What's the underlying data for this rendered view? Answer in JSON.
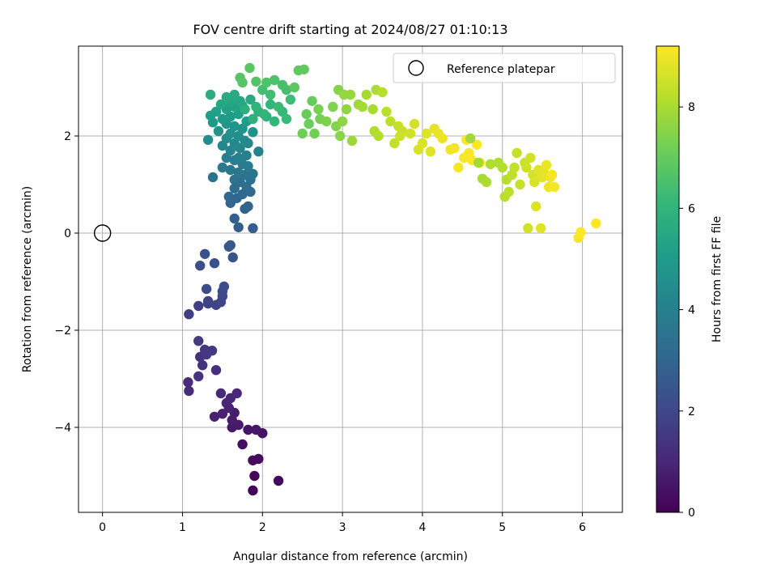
{
  "chart_data": {
    "type": "scatter",
    "title": "FOV centre drift starting at 2024/08/27 01:10:13",
    "xlabel": "Angular distance from reference (arcmin)",
    "ylabel": "Rotation from reference (arcmin)",
    "xlim": [
      -0.3,
      6.5
    ],
    "ylim": [
      -5.75,
      3.85
    ],
    "xticks": [
      0,
      1,
      2,
      3,
      4,
      5,
      6
    ],
    "yticks": [
      -4,
      -2,
      0,
      2
    ],
    "xtick_labels": [
      "0",
      "1",
      "2",
      "3",
      "4",
      "5",
      "6"
    ],
    "ytick_labels": [
      "−4",
      "−2",
      "0",
      "2"
    ],
    "grid": true,
    "legend": {
      "placement": "upper right",
      "entries": [
        "Reference platepar"
      ]
    },
    "reference_point": {
      "x": 0,
      "y": 0,
      "label": "Reference platepar"
    },
    "colorbar": {
      "label": "Hours from first FF file",
      "range": [
        0,
        9.2
      ],
      "ticks": [
        0,
        2,
        4,
        6,
        8
      ],
      "tick_labels": [
        "0",
        "2",
        "4",
        "6",
        "8"
      ],
      "colormap": "viridis"
    },
    "series": [
      {
        "colored_by": "hours",
        "points": [
          [
            1.88,
            -5.3,
            0.1
          ],
          [
            1.9,
            -5.0,
            0.15
          ],
          [
            2.2,
            -5.1,
            0.2
          ],
          [
            1.88,
            -4.68,
            0.25
          ],
          [
            1.95,
            -4.65,
            0.3
          ],
          [
            1.75,
            -4.35,
            0.4
          ],
          [
            2.0,
            -4.12,
            0.45
          ],
          [
            1.82,
            -4.05,
            0.5
          ],
          [
            1.92,
            -4.05,
            0.55
          ],
          [
            1.62,
            -4.0,
            0.6
          ],
          [
            1.7,
            -3.95,
            0.65
          ],
          [
            1.62,
            -3.85,
            0.7
          ],
          [
            1.65,
            -3.7,
            0.75
          ],
          [
            1.4,
            -3.78,
            0.8
          ],
          [
            1.5,
            -3.72,
            0.85
          ],
          [
            1.58,
            -3.6,
            0.9
          ],
          [
            1.55,
            -3.5,
            0.95
          ],
          [
            1.6,
            -3.4,
            1.0
          ],
          [
            1.68,
            -3.3,
            1.05
          ],
          [
            1.48,
            -3.3,
            1.1
          ],
          [
            1.08,
            -3.25,
            1.15
          ],
          [
            1.07,
            -3.07,
            1.2
          ],
          [
            1.42,
            -2.82,
            1.25
          ],
          [
            1.25,
            -2.72,
            1.3
          ],
          [
            1.2,
            -2.95,
            1.35
          ],
          [
            1.22,
            -2.55,
            1.4
          ],
          [
            1.3,
            -2.5,
            1.45
          ],
          [
            1.28,
            -2.4,
            1.5
          ],
          [
            1.37,
            -2.42,
            1.55
          ],
          [
            1.2,
            -2.22,
            1.6
          ],
          [
            1.08,
            -1.67,
            1.7
          ],
          [
            1.2,
            -1.5,
            1.75
          ],
          [
            1.32,
            -1.45,
            1.8
          ],
          [
            1.42,
            -1.48,
            1.85
          ],
          [
            1.32,
            -1.4,
            1.9
          ],
          [
            1.48,
            -1.42,
            1.95
          ],
          [
            1.5,
            -1.3,
            2.0
          ],
          [
            1.5,
            -1.2,
            2.05
          ],
          [
            1.3,
            -1.15,
            2.1
          ],
          [
            1.52,
            -1.1,
            2.15
          ],
          [
            1.22,
            -0.67,
            2.25
          ],
          [
            1.4,
            -0.62,
            2.3
          ],
          [
            1.28,
            -0.43,
            2.35
          ],
          [
            1.63,
            -0.5,
            2.4
          ],
          [
            1.58,
            -0.28,
            2.5
          ],
          [
            1.6,
            -0.25,
            2.55
          ],
          [
            1.88,
            0.1,
            2.7
          ],
          [
            1.7,
            0.12,
            2.75
          ],
          [
            1.65,
            0.3,
            2.8
          ],
          [
            1.78,
            0.5,
            2.9
          ],
          [
            1.82,
            0.55,
            2.95
          ],
          [
            1.6,
            0.62,
            3.0
          ],
          [
            1.68,
            0.72,
            3.05
          ],
          [
            1.58,
            0.75,
            3.1
          ],
          [
            1.75,
            0.8,
            3.15
          ],
          [
            1.85,
            0.85,
            3.2
          ],
          [
            1.65,
            0.92,
            3.25
          ],
          [
            1.8,
            0.95,
            3.3
          ],
          [
            1.72,
            1.05,
            3.35
          ],
          [
            1.85,
            1.1,
            3.4
          ],
          [
            1.65,
            1.1,
            3.45
          ],
          [
            1.38,
            1.15,
            3.5
          ],
          [
            1.78,
            1.2,
            3.55
          ],
          [
            1.88,
            1.22,
            3.6
          ],
          [
            1.7,
            1.25,
            3.65
          ],
          [
            1.6,
            1.3,
            3.7
          ],
          [
            1.5,
            1.35,
            3.75
          ],
          [
            1.82,
            1.38,
            3.8
          ],
          [
            1.75,
            1.42,
            3.85
          ],
          [
            1.65,
            1.5,
            3.9
          ],
          [
            1.55,
            1.55,
            3.95
          ],
          [
            1.7,
            1.55,
            4.0
          ],
          [
            1.8,
            1.6,
            4.05
          ],
          [
            1.95,
            1.68,
            4.1
          ],
          [
            1.6,
            1.7,
            4.15
          ],
          [
            1.72,
            1.75,
            4.2
          ],
          [
            1.5,
            1.8,
            4.25
          ],
          [
            1.82,
            1.85,
            4.3
          ],
          [
            1.65,
            1.85,
            4.35
          ],
          [
            1.78,
            1.9,
            4.4
          ],
          [
            1.32,
            1.92,
            4.45
          ],
          [
            1.55,
            1.95,
            4.5
          ],
          [
            1.7,
            2.0,
            4.55
          ],
          [
            1.6,
            2.05,
            4.6
          ],
          [
            1.88,
            2.08,
            4.65
          ],
          [
            1.45,
            2.1,
            4.7
          ],
          [
            1.75,
            2.15,
            4.75
          ],
          [
            1.65,
            2.2,
            4.8
          ],
          [
            1.55,
            2.25,
            4.85
          ],
          [
            1.38,
            2.28,
            4.9
          ],
          [
            1.8,
            2.3,
            4.95
          ],
          [
            1.5,
            2.35,
            5.0
          ],
          [
            1.6,
            2.4,
            5.05
          ],
          [
            1.35,
            2.42,
            5.1
          ],
          [
            1.7,
            2.45,
            5.15
          ],
          [
            1.42,
            2.5,
            5.2
          ],
          [
            1.55,
            2.55,
            5.25
          ],
          [
            1.65,
            2.6,
            5.3
          ],
          [
            1.75,
            2.62,
            5.35
          ],
          [
            1.48,
            2.65,
            5.4
          ],
          [
            1.6,
            2.7,
            5.45
          ],
          [
            1.72,
            2.72,
            5.5
          ],
          [
            1.85,
            2.75,
            5.55
          ],
          [
            1.55,
            2.8,
            5.6
          ],
          [
            1.65,
            2.85,
            5.65
          ],
          [
            1.35,
            2.85,
            5.7
          ],
          [
            1.78,
            2.55,
            5.75
          ],
          [
            1.95,
            2.5,
            5.8
          ],
          [
            1.88,
            2.35,
            5.85
          ],
          [
            2.05,
            2.4,
            5.9
          ],
          [
            1.92,
            2.6,
            5.95
          ],
          [
            2.1,
            2.65,
            6.0
          ],
          [
            2.02,
            2.45,
            6.05
          ],
          [
            2.15,
            2.3,
            6.1
          ],
          [
            2.25,
            2.5,
            6.15
          ],
          [
            2.3,
            2.35,
            6.2
          ],
          [
            2.2,
            2.6,
            6.25
          ],
          [
            2.35,
            2.75,
            6.3
          ],
          [
            2.1,
            2.85,
            6.35
          ],
          [
            2.0,
            2.95,
            6.4
          ],
          [
            2.3,
            2.95,
            6.45
          ],
          [
            2.25,
            3.05,
            6.5
          ],
          [
            2.15,
            3.15,
            6.55
          ],
          [
            2.05,
            3.1,
            6.6
          ],
          [
            1.92,
            3.12,
            6.65
          ],
          [
            1.72,
            3.2,
            6.7
          ],
          [
            1.75,
            3.1,
            6.75
          ],
          [
            1.84,
            3.4,
            6.8
          ],
          [
            2.4,
            3.0,
            6.85
          ],
          [
            2.45,
            3.35,
            6.9
          ],
          [
            2.52,
            3.37,
            6.95
          ],
          [
            2.62,
            2.72,
            7.0
          ],
          [
            2.55,
            2.45,
            7.05
          ],
          [
            2.58,
            2.25,
            7.1
          ],
          [
            2.5,
            2.05,
            7.15
          ],
          [
            2.65,
            2.05,
            7.2
          ],
          [
            2.72,
            2.35,
            7.25
          ],
          [
            2.7,
            2.55,
            7.3
          ],
          [
            2.8,
            2.3,
            7.35
          ],
          [
            2.88,
            2.6,
            7.4
          ],
          [
            2.92,
            2.2,
            7.45
          ],
          [
            2.95,
            2.95,
            7.5
          ],
          [
            2.97,
            2.0,
            7.55
          ],
          [
            3.0,
            2.3,
            7.6
          ],
          [
            3.05,
            2.55,
            7.65
          ],
          [
            3.02,
            2.85,
            7.7
          ],
          [
            3.1,
            2.85,
            7.75
          ],
          [
            3.12,
            1.9,
            7.8
          ],
          [
            3.2,
            2.65,
            7.85
          ],
          [
            3.25,
            2.6,
            7.9
          ],
          [
            3.3,
            2.85,
            7.95
          ],
          [
            3.38,
            2.55,
            8.0
          ],
          [
            3.42,
            2.95,
            8.05
          ],
          [
            3.4,
            2.1,
            8.1
          ],
          [
            3.45,
            2.0,
            8.15
          ],
          [
            3.5,
            2.9,
            8.2
          ],
          [
            3.55,
            2.5,
            8.25
          ],
          [
            3.6,
            2.3,
            8.3
          ],
          [
            3.65,
            1.85,
            8.35
          ],
          [
            3.7,
            2.2,
            8.4
          ],
          [
            3.75,
            2.1,
            8.45
          ],
          [
            3.72,
            2.0,
            8.5
          ],
          [
            3.85,
            2.05,
            8.55
          ],
          [
            3.9,
            2.25,
            8.6
          ],
          [
            3.95,
            1.72,
            8.65
          ],
          [
            4.0,
            1.85,
            8.7
          ],
          [
            4.05,
            2.05,
            8.75
          ],
          [
            4.1,
            1.68,
            8.8
          ],
          [
            4.15,
            2.15,
            8.85
          ],
          [
            4.2,
            2.05,
            8.9
          ],
          [
            4.25,
            1.95,
            8.95
          ],
          [
            4.35,
            1.72,
            9.0
          ],
          [
            4.4,
            1.75,
            9.05
          ],
          [
            4.45,
            1.35,
            9.1
          ],
          [
            4.52,
            1.55,
            9.12
          ],
          [
            4.55,
            1.92,
            9.14
          ],
          [
            4.58,
            1.65,
            9.16
          ],
          [
            4.62,
            1.5,
            9.18
          ],
          [
            4.68,
            1.82,
            9.2
          ],
          [
            4.72,
            1.45,
            9.2
          ]
        ]
      }
    ],
    "tail_points_bright": [
      [
        4.6,
        1.95
      ],
      [
        4.7,
        1.45
      ],
      [
        4.75,
        1.12
      ],
      [
        4.8,
        1.05
      ],
      [
        4.85,
        1.42
      ],
      [
        4.95,
        1.45
      ],
      [
        5.0,
        1.35
      ],
      [
        5.05,
        1.1
      ],
      [
        5.03,
        0.75
      ],
      [
        5.08,
        0.85
      ],
      [
        5.12,
        1.2
      ],
      [
        5.15,
        1.35
      ],
      [
        5.18,
        1.65
      ],
      [
        5.22,
        1.0
      ],
      [
        5.28,
        1.45
      ],
      [
        5.3,
        1.35
      ],
      [
        5.32,
        0.1
      ],
      [
        5.35,
        1.55
      ],
      [
        5.38,
        1.2
      ],
      [
        5.4,
        1.05
      ],
      [
        5.42,
        0.55
      ],
      [
        5.45,
        1.3
      ],
      [
        5.48,
        0.1
      ],
      [
        5.5,
        1.15
      ],
      [
        5.52,
        1.25
      ],
      [
        5.55,
        1.4
      ],
      [
        5.58,
        0.95
      ],
      [
        5.6,
        1.15
      ],
      [
        5.62,
        1.2
      ],
      [
        5.65,
        0.95
      ],
      [
        5.95,
        -0.1
      ],
      [
        5.98,
        0.02
      ],
      [
        6.17,
        0.2
      ]
    ]
  },
  "palette": {
    "axis_color": "#000000",
    "grid_color": "#b0b0b0",
    "legend_edge": "#cccccc",
    "viridis": [
      "#440154",
      "#482878",
      "#3e4989",
      "#31688e",
      "#26828e",
      "#1f9e89",
      "#35b779",
      "#6ece58",
      "#b5de2b",
      "#fde725"
    ]
  }
}
